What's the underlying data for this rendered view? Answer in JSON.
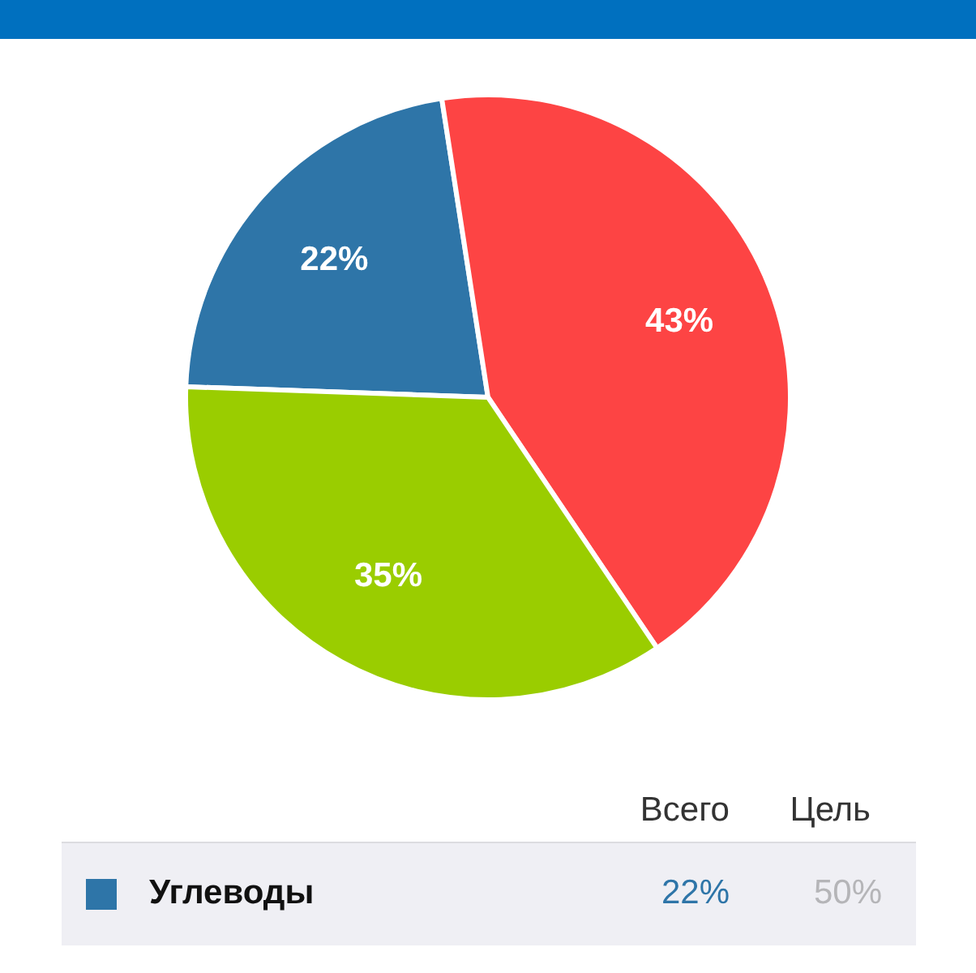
{
  "chart_data": {
    "type": "pie",
    "categories": [
      "Углеводы",
      null,
      null
    ],
    "values": [
      22,
      43,
      35
    ],
    "colors": [
      "#2e75a8",
      "#fd4444",
      "#9acd00"
    ],
    "value_labels": [
      "22%",
      "43%",
      "35%"
    ],
    "legend": "bottom",
    "annotations": [
      "Всего",
      "Цель",
      "50%"
    ]
  }
}
